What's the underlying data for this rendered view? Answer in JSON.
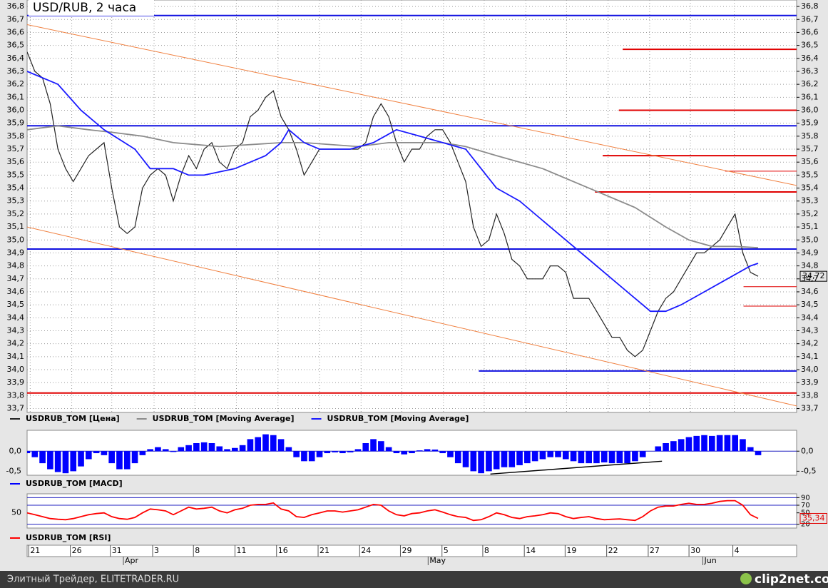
{
  "chart_data": [
    {
      "type": "line",
      "title": "USD/RUB, 2 часа",
      "xlim": [
        0,
        100
      ],
      "ylim": [
        33.67,
        36.85
      ],
      "grid": true,
      "yticks": [
        {
          "value": 36.8,
          "label": "36,8"
        },
        {
          "value": 36.7,
          "label": "36,7"
        },
        {
          "value": 36.6,
          "label": "36,6"
        },
        {
          "value": 36.5,
          "label": "36,5"
        },
        {
          "value": 36.4,
          "label": "36,4"
        },
        {
          "value": 36.3,
          "label": "36,3"
        },
        {
          "value": 36.2,
          "label": "36,2"
        },
        {
          "value": 36.1,
          "label": "36,1"
        },
        {
          "value": 36.0,
          "label": "36,0"
        },
        {
          "value": 35.9,
          "label": "35,9"
        },
        {
          "value": 35.8,
          "label": "35,8"
        },
        {
          "value": 35.7,
          "label": "35,7"
        },
        {
          "value": 35.6,
          "label": "35,6"
        },
        {
          "value": 35.5,
          "label": "35,5"
        },
        {
          "value": 35.4,
          "label": "35,4"
        },
        {
          "value": 35.3,
          "label": "35,3"
        },
        {
          "value": 35.2,
          "label": "35,2"
        },
        {
          "value": 35.1,
          "label": "35,1"
        },
        {
          "value": 35.0,
          "label": "35,0"
        },
        {
          "value": 34.9,
          "label": "34,9"
        },
        {
          "value": 34.8,
          "label": "34,8"
        },
        {
          "value": 34.7,
          "label": "34,7"
        },
        {
          "value": 34.6,
          "label": "34,6"
        },
        {
          "value": 34.5,
          "label": "34,5"
        },
        {
          "value": 34.4,
          "label": "34,4"
        },
        {
          "value": 34.3,
          "label": "34,3"
        },
        {
          "value": 34.2,
          "label": "34,2"
        },
        {
          "value": 34.1,
          "label": "34,1"
        },
        {
          "value": 34.0,
          "label": "34,0"
        },
        {
          "value": 33.9,
          "label": "33,9"
        },
        {
          "value": 33.8,
          "label": "33,8"
        },
        {
          "value": 33.7,
          "label": "33,7"
        }
      ],
      "xticks": [
        {
          "value": 0.4,
          "label": "21"
        },
        {
          "value": 5.8,
          "label": "26"
        },
        {
          "value": 11.0,
          "label": "31"
        },
        {
          "value": 16.5,
          "label": "3"
        },
        {
          "value": 21.8,
          "label": "8"
        },
        {
          "value": 27.2,
          "label": "11"
        },
        {
          "value": 32.6,
          "label": "16"
        },
        {
          "value": 38.0,
          "label": "21"
        },
        {
          "value": 43.4,
          "label": "24"
        },
        {
          "value": 48.7,
          "label": "29"
        },
        {
          "value": 54.1,
          "label": "5"
        },
        {
          "value": 59.4,
          "label": "8"
        },
        {
          "value": 64.8,
          "label": "14"
        },
        {
          "value": 70.1,
          "label": "19"
        },
        {
          "value": 75.5,
          "label": "22"
        },
        {
          "value": 80.9,
          "label": "27"
        },
        {
          "value": 86.2,
          "label": "30"
        },
        {
          "value": 91.9,
          "label": "4"
        }
      ],
      "months": [
        {
          "value": 12.7,
          "label": "Apr"
        },
        {
          "value": 52.3,
          "label": "May"
        },
        {
          "value": 88,
          "label": "Jun"
        }
      ],
      "last": {
        "value": 34.72,
        "label": "34,72"
      },
      "series": [
        {
          "name": "USDRUB_TOM [Цена]",
          "color": "#222222",
          "x": [
            0,
            1,
            2,
            3,
            4,
            5,
            6,
            7,
            8,
            9,
            10,
            11,
            12,
            13,
            14,
            15,
            16,
            17,
            18,
            19,
            20,
            21,
            22,
            23,
            24,
            25,
            26,
            27,
            28,
            29,
            30,
            31,
            32,
            33,
            34,
            35,
            36,
            37,
            38,
            39,
            40,
            41,
            42,
            43,
            44,
            45,
            46,
            47,
            48,
            49,
            50,
            51,
            52,
            53,
            54,
            55,
            56,
            57,
            58,
            59,
            60,
            61,
            62,
            63,
            64,
            65,
            66,
            67,
            68,
            69,
            70,
            71,
            72,
            73,
            74,
            75,
            76,
            77,
            78,
            79,
            80,
            81,
            82,
            83,
            84,
            85,
            86,
            87,
            88,
            89,
            90,
            91,
            92,
            93,
            94,
            95
          ],
          "values": [
            36.45,
            36.3,
            36.25,
            36.05,
            35.7,
            35.55,
            35.45,
            35.55,
            35.65,
            35.7,
            35.75,
            35.4,
            35.1,
            35.05,
            35.1,
            35.4,
            35.5,
            35.55,
            35.5,
            35.3,
            35.5,
            35.65,
            35.55,
            35.7,
            35.75,
            35.6,
            35.55,
            35.7,
            35.75,
            35.95,
            36.0,
            36.1,
            36.15,
            35.95,
            35.85,
            35.7,
            35.5,
            35.6,
            35.7,
            35.7,
            35.7,
            35.7,
            35.7,
            35.7,
            35.75,
            35.95,
            36.05,
            35.95,
            35.75,
            35.6,
            35.7,
            35.7,
            35.8,
            35.85,
            35.85,
            35.75,
            35.6,
            35.45,
            35.1,
            34.95,
            35.0,
            35.2,
            35.05,
            34.85,
            34.8,
            34.7,
            34.7,
            34.7,
            34.8,
            34.8,
            34.75,
            34.55,
            34.55,
            34.55,
            34.45,
            34.35,
            34.25,
            34.25,
            34.15,
            34.1,
            34.15,
            34.3,
            34.45,
            34.55,
            34.6,
            34.7,
            34.8,
            34.9,
            34.9,
            34.95,
            35.0,
            35.1,
            35.2,
            34.9,
            34.75,
            34.72
          ]
        },
        {
          "name": "USDRUB_TOM [Moving Average]",
          "color": "#8c8c8c",
          "x": [
            0,
            4,
            8,
            11,
            15,
            19,
            25,
            33,
            36,
            43,
            47,
            54,
            57,
            61,
            67,
            73,
            79,
            83,
            86,
            89,
            92,
            95
          ],
          "values": [
            35.85,
            35.88,
            35.85,
            35.83,
            35.8,
            35.75,
            35.72,
            35.75,
            35.75,
            35.72,
            35.75,
            35.75,
            35.72,
            35.65,
            35.55,
            35.4,
            35.25,
            35.1,
            35.0,
            34.95,
            34.95,
            34.94
          ]
        },
        {
          "name": "USDRUB_TOM [Moving Average]",
          "color": "#1a1aff",
          "x": [
            0,
            4,
            7,
            10,
            14,
            16,
            19,
            21,
            23,
            27,
            29,
            31,
            33,
            34,
            36,
            38,
            42,
            45,
            48,
            51,
            54,
            57,
            59,
            61,
            64,
            67,
            70,
            73,
            76,
            79,
            81,
            83,
            85,
            88,
            91,
            94,
            95
          ],
          "values": [
            36.3,
            36.2,
            36.0,
            35.85,
            35.7,
            35.55,
            35.55,
            35.5,
            35.5,
            35.55,
            35.6,
            35.65,
            35.75,
            35.85,
            35.75,
            35.7,
            35.7,
            35.75,
            35.85,
            35.8,
            35.75,
            35.7,
            35.55,
            35.4,
            35.3,
            35.15,
            35.0,
            34.85,
            34.7,
            34.55,
            34.45,
            34.45,
            34.5,
            34.6,
            34.7,
            34.8,
            34.82
          ]
        }
      ],
      "levels": [
        {
          "value": 36.73,
          "x0": 0,
          "color": "#1010e0"
        },
        {
          "value": 36.47,
          "x0": 77.4,
          "color": "#e00000"
        },
        {
          "value": 36.0,
          "x0": 76.9,
          "color": "#e00000"
        },
        {
          "value": 35.65,
          "x0": 74.8,
          "color": "#e00000"
        },
        {
          "value": 35.53,
          "x0": 90.7,
          "color": "#e00000"
        },
        {
          "value": 35.37,
          "x0": 73.8,
          "color": "#e00000"
        },
        {
          "value": 35.88,
          "x0": 0,
          "color": "#1010e0"
        },
        {
          "value": 34.93,
          "x0": 0,
          "color": "#1010e0"
        },
        {
          "value": 34.64,
          "x0": 93.1,
          "color": "#e00000"
        },
        {
          "value": 34.49,
          "x0": 93.1,
          "color": "#e00000"
        },
        {
          "value": 33.99,
          "x0": 58.7,
          "color": "#1010e0"
        },
        {
          "value": 33.82,
          "x0": 0,
          "color": "#e00000"
        }
      ],
      "trendlines": [
        {
          "x": [
            0,
            100
          ],
          "values": [
            36.66,
            35.42
          ],
          "color": "#f08040"
        },
        {
          "x": [
            0,
            100
          ],
          "values": [
            35.1,
            33.72
          ],
          "color": "#f08040"
        }
      ]
    },
    {
      "type": "bar",
      "xlim": [
        0,
        100
      ],
      "ylim": [
        -0.6,
        0.52
      ],
      "yticks": [
        {
          "value": 0.0,
          "label": "0,0"
        },
        {
          "value": -0.5,
          "label": "-0,5"
        }
      ],
      "series": [
        {
          "name": "USDRUB_TOM [MACD]",
          "color": "#0000ff",
          "x": [
            0,
            1,
            2,
            3,
            4,
            5,
            6,
            7,
            8,
            9,
            10,
            11,
            12,
            13,
            14,
            15,
            16,
            17,
            18,
            19,
            20,
            21,
            22,
            23,
            24,
            25,
            26,
            27,
            28,
            29,
            30,
            31,
            32,
            33,
            34,
            35,
            36,
            37,
            38,
            39,
            40,
            41,
            42,
            43,
            44,
            45,
            46,
            47,
            48,
            49,
            50,
            51,
            52,
            53,
            54,
            55,
            56,
            57,
            58,
            59,
            60,
            61,
            62,
            63,
            64,
            65,
            66,
            67,
            68,
            69,
            70,
            71,
            72,
            73,
            74,
            75,
            76,
            77,
            78,
            79,
            80,
            81,
            82,
            83,
            84,
            85,
            86,
            87,
            88,
            89,
            90,
            91,
            92,
            93,
            94,
            95
          ],
          "values": [
            -0.05,
            -0.15,
            -0.3,
            -0.45,
            -0.52,
            -0.55,
            -0.5,
            -0.38,
            -0.2,
            -0.05,
            -0.1,
            -0.3,
            -0.45,
            -0.45,
            -0.3,
            -0.1,
            0.05,
            0.1,
            0.05,
            -0.02,
            0.1,
            0.15,
            0.2,
            0.22,
            0.2,
            0.12,
            0.05,
            0.08,
            0.15,
            0.3,
            0.35,
            0.42,
            0.4,
            0.3,
            0.1,
            -0.15,
            -0.25,
            -0.25,
            -0.15,
            -0.05,
            -0.03,
            -0.05,
            -0.03,
            0.05,
            0.2,
            0.3,
            0.25,
            0.1,
            -0.05,
            -0.08,
            -0.05,
            0.02,
            0.05,
            0.04,
            -0.05,
            -0.15,
            -0.3,
            -0.4,
            -0.5,
            -0.55,
            -0.5,
            -0.45,
            -0.4,
            -0.4,
            -0.35,
            -0.3,
            -0.25,
            -0.2,
            -0.15,
            -0.15,
            -0.2,
            -0.25,
            -0.3,
            -0.3,
            -0.3,
            -0.28,
            -0.3,
            -0.3,
            -0.3,
            -0.25,
            -0.15,
            0.0,
            0.12,
            0.2,
            0.25,
            0.3,
            0.35,
            0.38,
            0.4,
            0.38,
            0.4,
            0.4,
            0.4,
            0.3,
            0.1,
            -0.1
          ]
        }
      ],
      "trendlines": [
        {
          "x": [
            60.2,
            82.5
          ],
          "values": [
            -0.57,
            -0.25
          ],
          "color": "#000000"
        }
      ]
    },
    {
      "type": "line",
      "xlim": [
        0,
        100
      ],
      "ylim": [
        10,
        100
      ],
      "yticks_left": [
        50
      ],
      "yticks": [
        90,
        70,
        50,
        20
      ],
      "last": {
        "value": 35.34,
        "label": "35,34"
      },
      "series": [
        {
          "name": "USDRUB_TOM [RSI]",
          "color": "#ff0000",
          "x": [
            0,
            1,
            2,
            3,
            4,
            5,
            6,
            7,
            8,
            9,
            10,
            11,
            12,
            13,
            14,
            15,
            16,
            17,
            18,
            19,
            20,
            21,
            22,
            23,
            24,
            25,
            26,
            27,
            28,
            29,
            30,
            31,
            32,
            33,
            34,
            35,
            36,
            37,
            38,
            39,
            40,
            41,
            42,
            43,
            44,
            45,
            46,
            47,
            48,
            49,
            50,
            51,
            52,
            53,
            54,
            55,
            56,
            57,
            58,
            59,
            60,
            61,
            62,
            63,
            64,
            65,
            66,
            67,
            68,
            69,
            70,
            71,
            72,
            73,
            74,
            75,
            76,
            77,
            78,
            79,
            80,
            81,
            82,
            83,
            84,
            85,
            86,
            87,
            88,
            89,
            90,
            91,
            92,
            93,
            94,
            95
          ],
          "values": [
            50,
            45,
            40,
            35,
            33,
            32,
            35,
            40,
            45,
            48,
            50,
            40,
            35,
            33,
            38,
            50,
            60,
            58,
            55,
            45,
            55,
            65,
            60,
            62,
            65,
            55,
            50,
            58,
            62,
            70,
            72,
            72,
            76,
            60,
            55,
            40,
            38,
            45,
            50,
            55,
            55,
            52,
            55,
            58,
            65,
            72,
            70,
            55,
            45,
            42,
            48,
            50,
            55,
            58,
            52,
            45,
            40,
            38,
            30,
            32,
            40,
            50,
            45,
            38,
            35,
            40,
            42,
            45,
            50,
            48,
            40,
            35,
            38,
            40,
            35,
            32,
            33,
            34,
            32,
            30,
            40,
            55,
            65,
            68,
            68,
            72,
            75,
            72,
            72,
            75,
            80,
            82,
            82,
            70,
            45,
            35.34
          ]
        }
      ]
    }
  ],
  "footer": {
    "left": "Элитный Трейдер, ELITETRADER.RU",
    "right": "clip2net.com"
  }
}
